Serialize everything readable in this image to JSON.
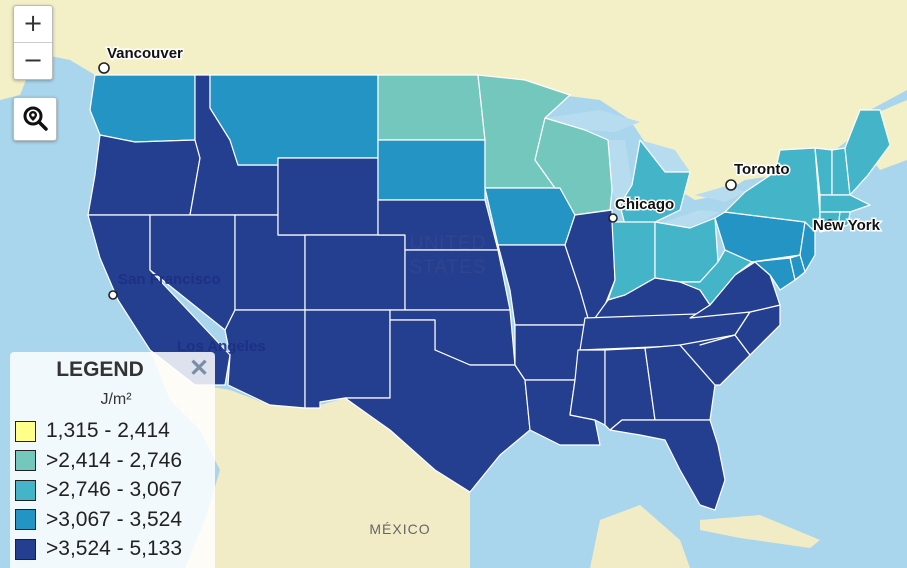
{
  "colors": {
    "ocean": "#a9d6ec",
    "land_canada": "#f3efc7",
    "land_mexico": "#f2ecc6",
    "water_lakes": "#b7dcef",
    "class_1": "#ffff8a",
    "class_2": "#73c7bd",
    "class_3": "#44b5c9",
    "class_4": "#2394c4",
    "class_5": "#243f8f"
  },
  "controls": {
    "zoom_in": "+",
    "zoom_out": "−",
    "locate_icon": "search-location-icon"
  },
  "cities": {
    "vancouver": "Vancouver",
    "toronto": "Toronto",
    "chicago": "Chicago",
    "new_york": "New York",
    "san_francisco": "San Francisco",
    "los_angeles": "Los Angeles"
  },
  "labels": {
    "united_states_line1": "UNITED",
    "united_states_line2": "STATES",
    "mexico": "MÉXICO"
  },
  "legend": {
    "title": "LEGEND",
    "close": "✕",
    "units": "J/m²",
    "items": [
      {
        "label": "1,315 - 2,414",
        "color": "#ffff8a"
      },
      {
        "label": ">2,414 - 2,746",
        "color": "#73c7bd"
      },
      {
        "label": ">2,746 - 3,067",
        "color": "#44b5c9"
      },
      {
        "label": ">3,067 - 3,524",
        "color": "#2394c4"
      },
      {
        "label": ">3,524 - 5,133",
        "color": "#243f8f"
      }
    ]
  },
  "state_classes": {
    "WA": 4,
    "OR": 5,
    "CA": 5,
    "ID": 5,
    "NV": 5,
    "AZ": 5,
    "UT": 5,
    "MT": 4,
    "WY": 5,
    "CO": 5,
    "NM": 5,
    "ND": 2,
    "SD": 4,
    "NE": 5,
    "KS": 5,
    "OK": 5,
    "TX": 5,
    "MN": 2,
    "IA": 4,
    "MO": 5,
    "AR": 5,
    "LA": 5,
    "WI": 2,
    "IL": 5,
    "MI": 3,
    "IN": 3,
    "OH": 3,
    "KY": 5,
    "TN": 5,
    "MS": 5,
    "AL": 5,
    "GA": 5,
    "FL": 5,
    "SC": 5,
    "NC": 5,
    "VA": 5,
    "WV": 3,
    "PA": 4,
    "NY": 3,
    "ME": 3,
    "VT": 3,
    "NH": 3,
    "MA": 3,
    "CT": 3,
    "RI": 3,
    "NJ": 4,
    "DE": 4,
    "MD": 4
  }
}
